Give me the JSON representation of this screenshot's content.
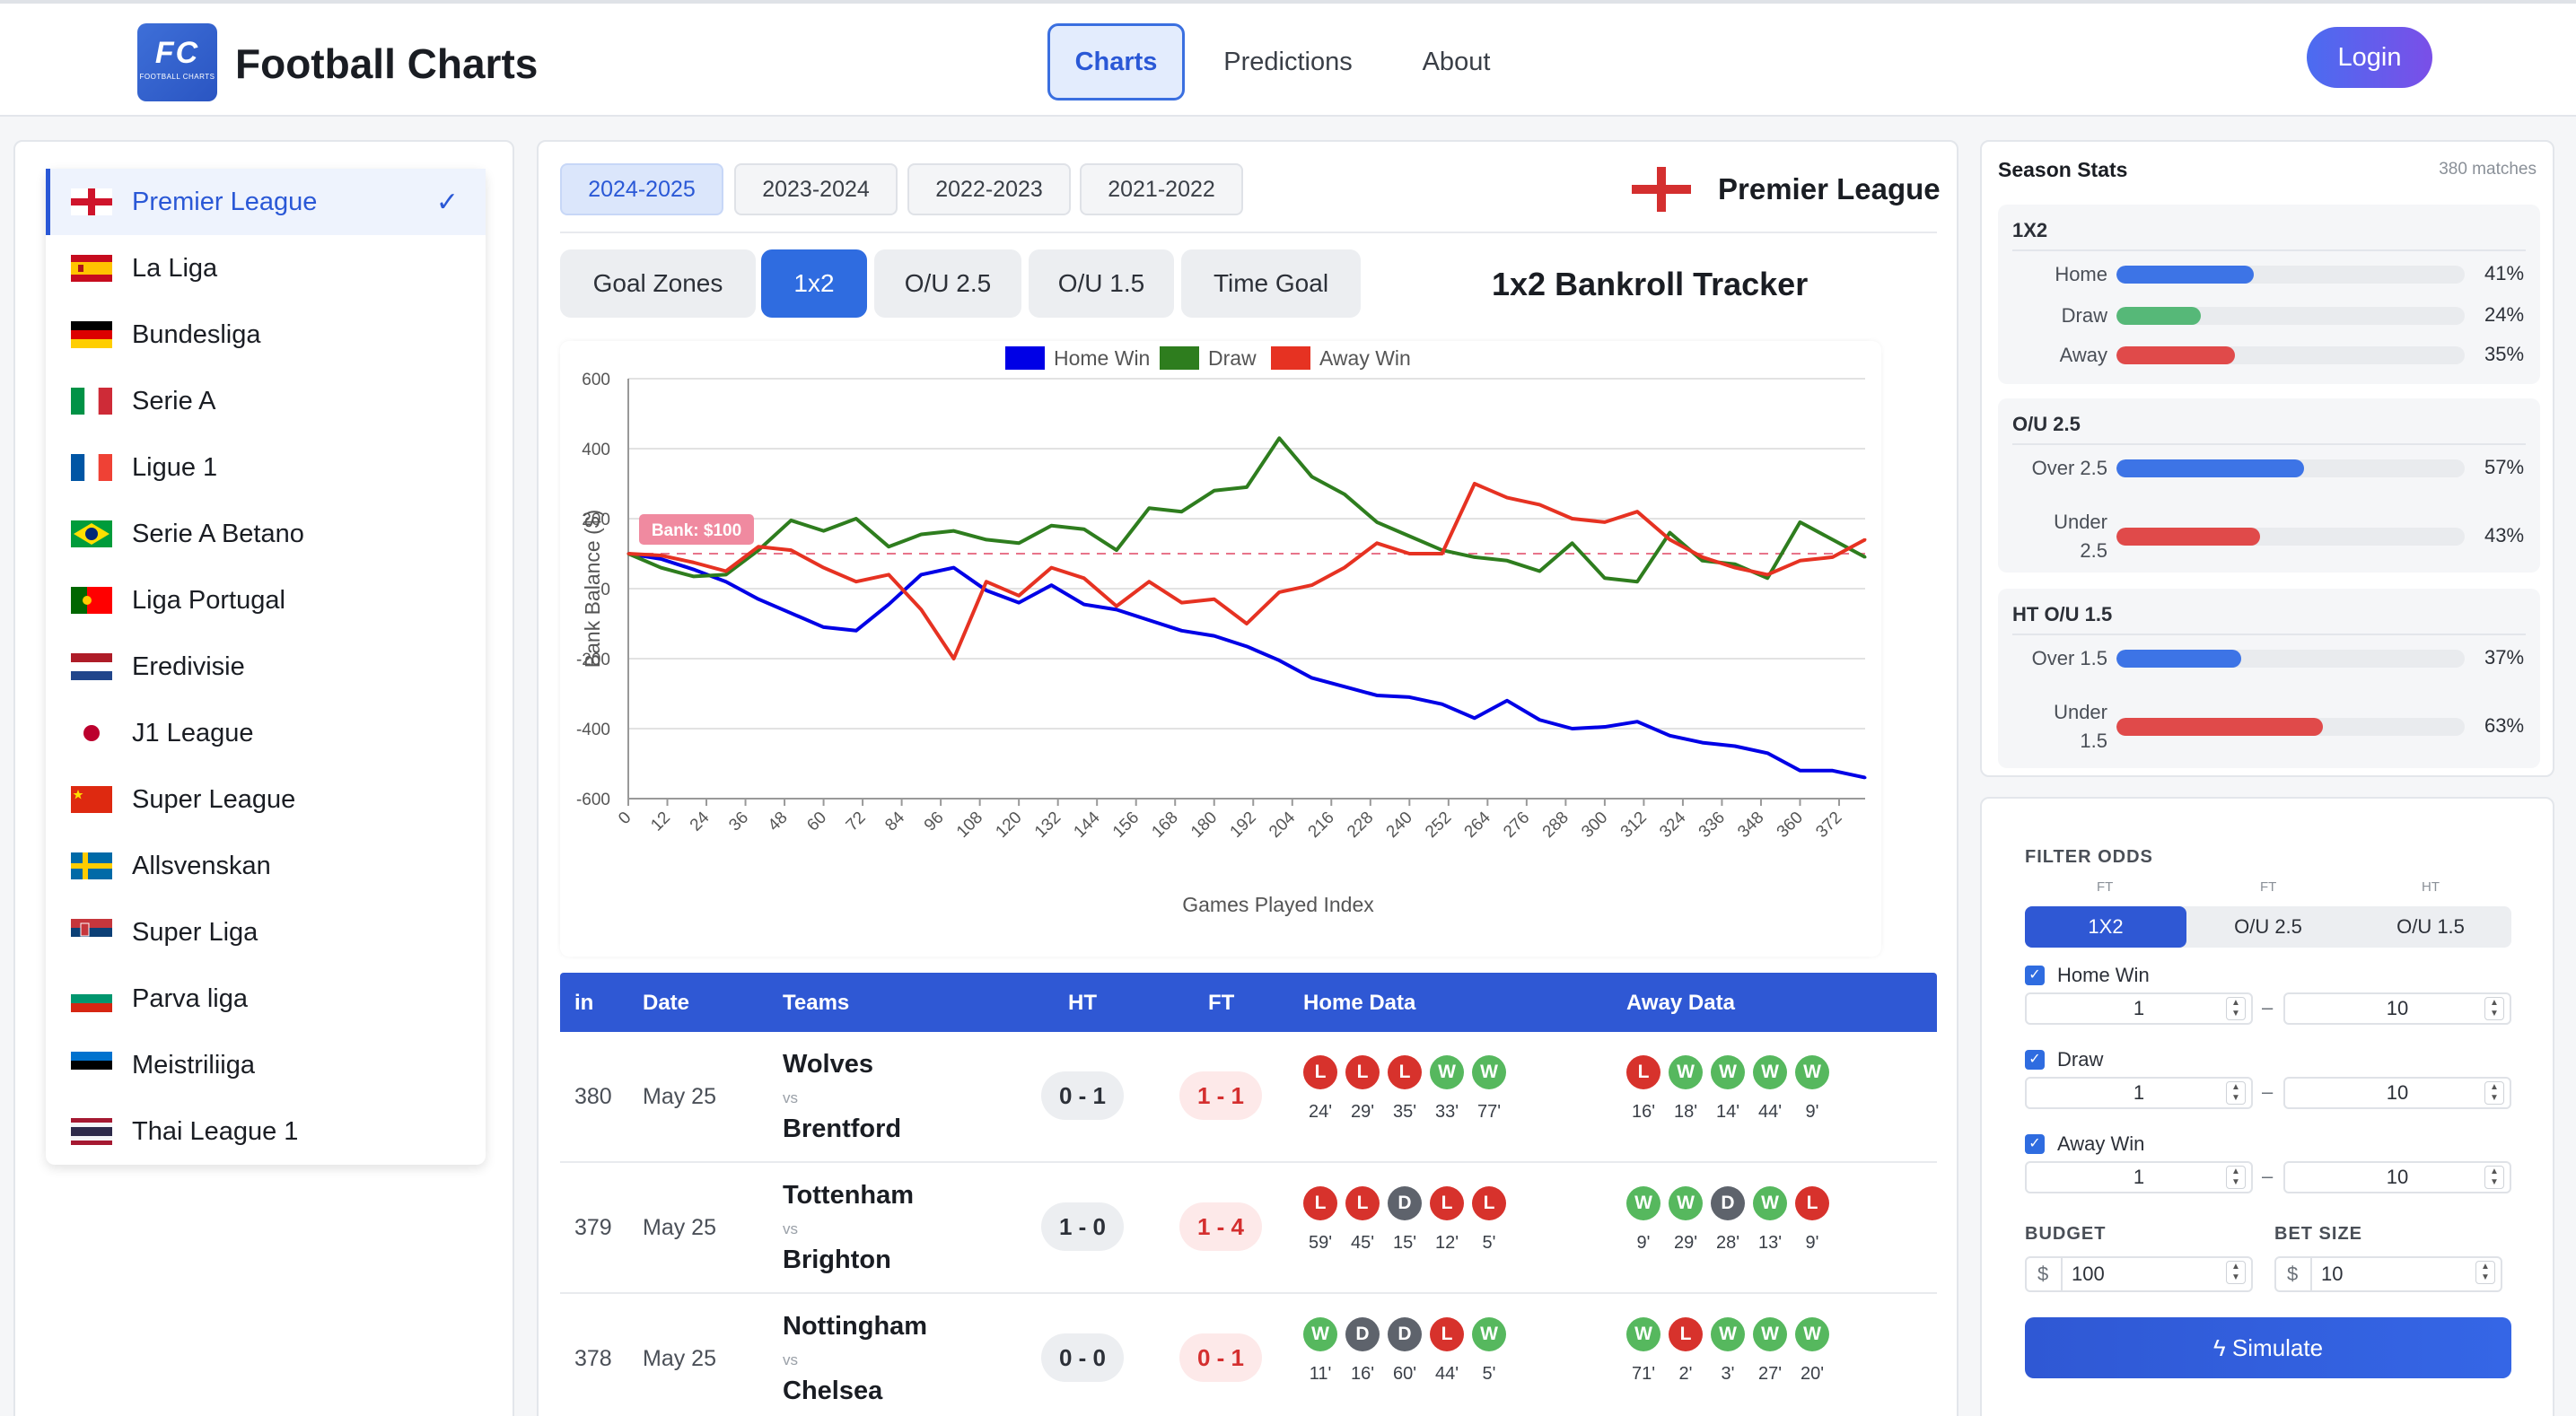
{
  "header": {
    "logo_text": "FC",
    "logo_sub": "FOOTBALL CHARTS",
    "brand": "Football Charts",
    "nav": [
      {
        "label": "Charts",
        "active": true
      },
      {
        "label": "Predictions",
        "active": false
      },
      {
        "label": "About",
        "active": false
      }
    ],
    "login_label": "Login"
  },
  "leagues": [
    {
      "name": "Premier League",
      "active": true,
      "flag": "england"
    },
    {
      "name": "La Liga",
      "flag": "spain"
    },
    {
      "name": "Bundesliga",
      "flag": "germany"
    },
    {
      "name": "Serie A",
      "flag": "italy"
    },
    {
      "name": "Ligue 1",
      "flag": "france"
    },
    {
      "name": "Serie A Betano",
      "flag": "brazil"
    },
    {
      "name": "Liga Portugal",
      "flag": "portugal"
    },
    {
      "name": "Eredivisie",
      "flag": "netherlands"
    },
    {
      "name": "J1 League",
      "flag": "japan"
    },
    {
      "name": "Super League",
      "flag": "china"
    },
    {
      "name": "Allsvenskan",
      "flag": "sweden"
    },
    {
      "name": "Super Liga",
      "flag": "serbia"
    },
    {
      "name": "Parva liga",
      "flag": "bulgaria"
    },
    {
      "name": "Meistriliiga",
      "flag": "estonia"
    },
    {
      "name": "Thai League 1",
      "flag": "thailand"
    }
  ],
  "seasons": [
    {
      "label": "2024-2025",
      "active": true
    },
    {
      "label": "2023-2024"
    },
    {
      "label": "2022-2023"
    },
    {
      "label": "2021-2022"
    }
  ],
  "selected_league": "Premier League",
  "chart_tabs": [
    {
      "label": "Goal Zones"
    },
    {
      "label": "1x2",
      "active": true
    },
    {
      "label": "O/U 2.5"
    },
    {
      "label": "O/U 1.5"
    },
    {
      "label": "Time Goal"
    }
  ],
  "tracker_title": "1x2 Bankroll Tracker",
  "chart_data": {
    "type": "line",
    "xlabel": "Games Played Index",
    "ylabel": "Bank Balance ($)",
    "ylim": [
      -600,
      600
    ],
    "y_ticks": [
      "600",
      "400",
      "200",
      "0",
      "-200",
      "-400",
      "-600"
    ],
    "x_ticks": [
      "0",
      "12",
      "24",
      "36",
      "48",
      "60",
      "72",
      "84",
      "96",
      "108",
      "120",
      "132",
      "144",
      "156",
      "168",
      "180",
      "192",
      "204",
      "216",
      "228",
      "240",
      "252",
      "264",
      "276",
      "288",
      "300",
      "312",
      "324",
      "336",
      "348",
      "360",
      "372"
    ],
    "xlim": [
      0,
      380
    ],
    "baseline_label": "Bank: $100",
    "baseline": 100,
    "legend_position": "top-center",
    "grid": true,
    "series": [
      {
        "name": "Home Win",
        "color": "#0000e6",
        "x": [
          0,
          10,
          20,
          30,
          40,
          50,
          60,
          70,
          80,
          90,
          100,
          110,
          120,
          130,
          140,
          150,
          160,
          170,
          180,
          190,
          200,
          210,
          220,
          230,
          240,
          250,
          260,
          270,
          280,
          290,
          300,
          310,
          320,
          330,
          340,
          350,
          360,
          370,
          380
        ],
        "values": [
          100,
          85,
          55,
          20,
          -30,
          -70,
          -110,
          -120,
          -45,
          40,
          60,
          -5,
          -40,
          10,
          -45,
          -60,
          -90,
          -120,
          -135,
          -165,
          -205,
          -255,
          -280,
          -305,
          -310,
          -330,
          -370,
          -320,
          -375,
          -400,
          -395,
          -380,
          -420,
          -440,
          -450,
          -470,
          -520,
          -520,
          -540
        ]
      },
      {
        "name": "Draw",
        "color": "#2e7d1e",
        "x": [
          0,
          10,
          20,
          30,
          40,
          50,
          60,
          70,
          80,
          90,
          100,
          110,
          120,
          130,
          140,
          150,
          160,
          170,
          180,
          190,
          200,
          210,
          220,
          230,
          240,
          250,
          260,
          270,
          280,
          290,
          300,
          310,
          320,
          330,
          340,
          350,
          360,
          370,
          380
        ],
        "values": [
          100,
          60,
          35,
          40,
          110,
          195,
          165,
          200,
          120,
          155,
          165,
          140,
          130,
          180,
          170,
          110,
          230,
          220,
          280,
          290,
          430,
          320,
          270,
          190,
          150,
          110,
          90,
          80,
          50,
          130,
          30,
          20,
          160,
          80,
          70,
          30,
          190,
          140,
          90
        ]
      },
      {
        "name": "Away Win",
        "color": "#e63222",
        "x": [
          0,
          10,
          20,
          30,
          40,
          50,
          60,
          70,
          80,
          90,
          100,
          110,
          120,
          130,
          140,
          150,
          160,
          170,
          180,
          190,
          200,
          210,
          220,
          230,
          240,
          250,
          260,
          270,
          280,
          290,
          300,
          310,
          320,
          330,
          340,
          350,
          360,
          370,
          380
        ],
        "values": [
          100,
          95,
          75,
          50,
          120,
          110,
          60,
          20,
          40,
          -60,
          -200,
          20,
          -20,
          60,
          30,
          -50,
          20,
          -40,
          -30,
          -100,
          -10,
          10,
          60,
          130,
          100,
          100,
          300,
          260,
          240,
          200,
          190,
          220,
          140,
          90,
          60,
          40,
          80,
          90,
          140
        ]
      }
    ]
  },
  "table": {
    "headers": [
      "in",
      "Date",
      "Teams",
      "HT",
      "FT",
      "Home Data",
      "Away Data"
    ],
    "vs_label": "vs",
    "rows": [
      {
        "idx": "380",
        "date": "May 25",
        "home": "Wolves",
        "away": "Brentford",
        "ht": "0 - 1",
        "ft": "1 - 1",
        "home_form": [
          "L",
          "L",
          "L",
          "W",
          "W"
        ],
        "home_mins": [
          "24'",
          "29'",
          "35'",
          "33'",
          "77'"
        ],
        "away_form": [
          "L",
          "W",
          "W",
          "W",
          "W"
        ],
        "away_mins": [
          "16'",
          "18'",
          "14'",
          "44'",
          "9'"
        ]
      },
      {
        "idx": "379",
        "date": "May 25",
        "home": "Tottenham",
        "away": "Brighton",
        "ht": "1 - 0",
        "ft": "1 - 4",
        "home_form": [
          "L",
          "L",
          "D",
          "L",
          "L"
        ],
        "home_mins": [
          "59'",
          "45'",
          "15'",
          "12'",
          "5'"
        ],
        "away_form": [
          "W",
          "W",
          "D",
          "W",
          "L"
        ],
        "away_mins": [
          "9'",
          "29'",
          "28'",
          "13'",
          "9'"
        ]
      },
      {
        "idx": "378",
        "date": "May 25",
        "home": "Nottingham",
        "away": "Chelsea",
        "ht": "0 - 0",
        "ft": "0 - 1",
        "home_form": [
          "W",
          "D",
          "D",
          "L",
          "W"
        ],
        "home_mins": [
          "11'",
          "16'",
          "60'",
          "44'",
          "5'"
        ],
        "away_form": [
          "W",
          "L",
          "W",
          "W",
          "W"
        ],
        "away_mins": [
          "71'",
          "2'",
          "3'",
          "27'",
          "20'"
        ]
      }
    ]
  },
  "season_stats": {
    "title": "Season Stats",
    "count": "380 matches",
    "groups": [
      {
        "title": "1X2",
        "rows": [
          {
            "label": "Home",
            "pct": "41%",
            "value": 41,
            "color": "#3d74e6"
          },
          {
            "label": "Draw",
            "pct": "24%",
            "value": 24,
            "color": "#56b878"
          },
          {
            "label": "Away",
            "pct": "35%",
            "value": 35,
            "color": "#e04a4a"
          }
        ]
      },
      {
        "title": "O/U 2.5",
        "rows": [
          {
            "label": "Over 2.5",
            "pct": "57%",
            "value": 57,
            "color": "#3d74e6"
          },
          {
            "label": "Under 2.5",
            "pct": "43%",
            "value": 43,
            "color": "#e04a4a"
          }
        ]
      },
      {
        "title": "HT O/U 1.5",
        "rows": [
          {
            "label": "Over 1.5",
            "pct": "37%",
            "value": 37,
            "color": "#3d74e6"
          },
          {
            "label": "Under 1.5",
            "pct": "63%",
            "value": 63,
            "color": "#e04a4a"
          }
        ]
      }
    ]
  },
  "filter": {
    "title": "FILTER ODDS",
    "mini_labels": [
      "FT",
      "FT",
      "HT"
    ],
    "tabs": [
      {
        "label": "1X2",
        "active": true
      },
      {
        "label": "O/U 2.5"
      },
      {
        "label": "O/U 1.5"
      }
    ],
    "dash": "–",
    "checks": [
      {
        "label": "Home Win",
        "min": "1",
        "max": "10"
      },
      {
        "label": "Draw",
        "min": "1",
        "max": "10"
      },
      {
        "label": "Away Win",
        "min": "1",
        "max": "10"
      }
    ],
    "budget_label": "BUDGET",
    "budget_currency": "$",
    "budget_value": "100",
    "bet_label": "BET SIZE",
    "bet_currency": "$",
    "bet_value": "10",
    "simulate_label": "Simulate"
  }
}
